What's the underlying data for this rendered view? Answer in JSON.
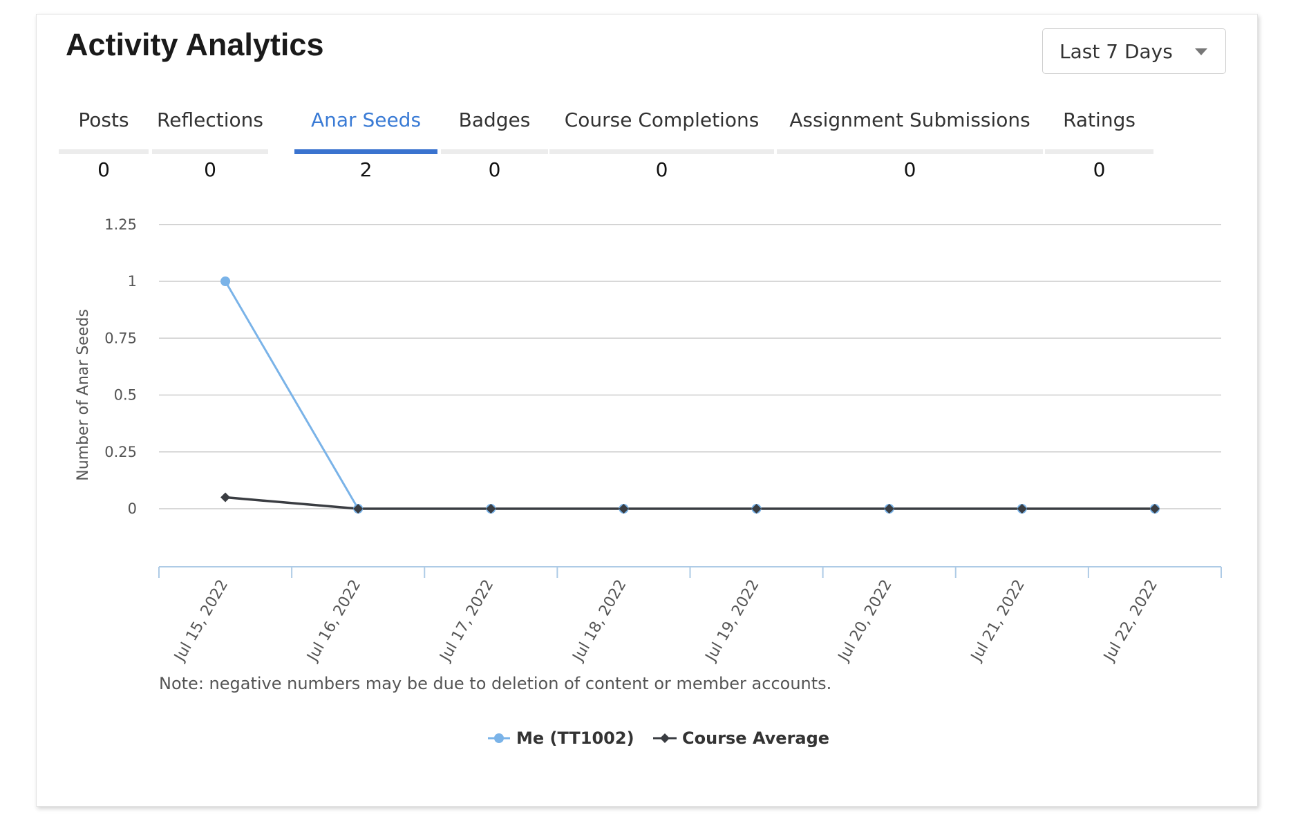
{
  "header": {
    "title": "Activity Analytics"
  },
  "range_select": {
    "selected": "Last 7 Days"
  },
  "tabs": [
    {
      "label": "Posts",
      "count": "0",
      "active": false
    },
    {
      "label": "Reflections",
      "count": "0",
      "active": false
    },
    {
      "label": "Anar Seeds",
      "count": "2",
      "active": true
    },
    {
      "label": "Badges",
      "count": "0",
      "active": false
    },
    {
      "label": "Course Completions",
      "count": "0",
      "active": false
    },
    {
      "label": "Assignment Submissions",
      "count": "0",
      "active": false
    },
    {
      "label": "Ratings",
      "count": "0",
      "active": false
    }
  ],
  "note": "Note: negative numbers may be due to deletion of content or member accounts.",
  "colors": {
    "me": "#7ab3e8",
    "average": "#3a3d42",
    "active_tab": "#3a73cf",
    "grid": "#cccccc",
    "x_axis": "#aecbe6"
  },
  "chart_data": {
    "type": "line",
    "ylabel": "Number of Anar Seeds",
    "xlabel": "",
    "categories": [
      "Jul 15, 2022",
      "Jul 16, 2022",
      "Jul 17, 2022",
      "Jul 18, 2022",
      "Jul 19, 2022",
      "Jul 20, 2022",
      "Jul 21, 2022",
      "Jul 22, 2022"
    ],
    "y_ticks": [
      "1.25",
      "1",
      "0.75",
      "0.5",
      "0.25",
      "0"
    ],
    "ylim": [
      -0.25,
      1.25
    ],
    "grid": true,
    "legend_position": "bottom-center",
    "series": [
      {
        "name": "Me (TT1002)",
        "marker": "circle",
        "values": [
          1,
          0,
          0,
          0,
          0,
          0,
          0,
          0
        ]
      },
      {
        "name": "Course Average",
        "marker": "diamond",
        "values": [
          0.05,
          0,
          0,
          0,
          0,
          0,
          0,
          0
        ]
      }
    ]
  }
}
